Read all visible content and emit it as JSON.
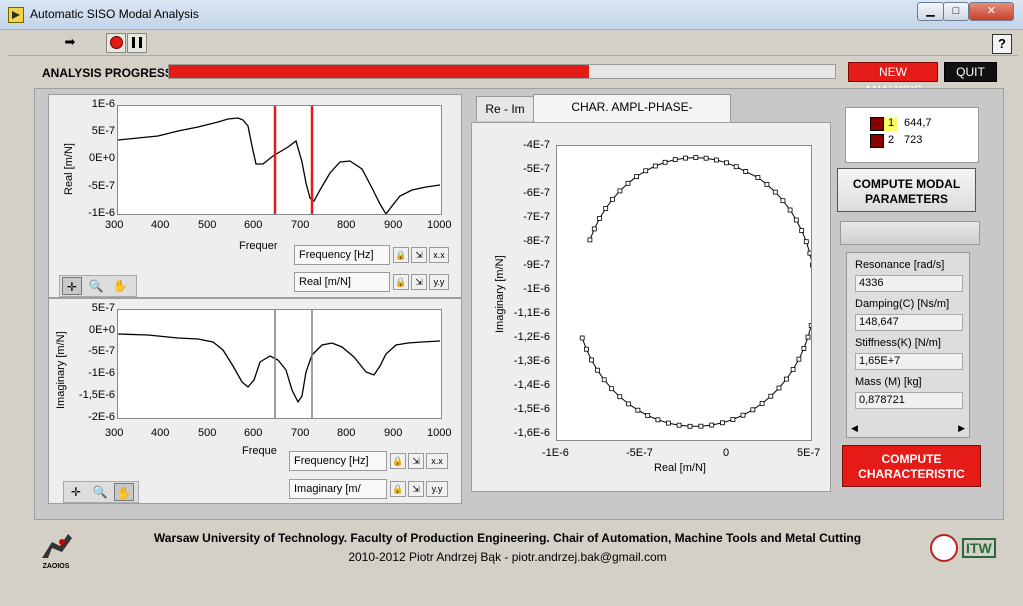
{
  "window": {
    "title": "Automatic SISO Modal Analysis",
    "minimize_glyph": "▁",
    "maximize_glyph": "□",
    "close_glyph": "✕"
  },
  "toolbar": {
    "run_icon": "➡",
    "help_label": "?"
  },
  "progress": {
    "label": "ANALYSIS PROGRESS",
    "fraction": 0.63
  },
  "buttons": {
    "new_analysis": "NEW ANALYSIS",
    "quit": "QUIT",
    "compute_modal_line1": "COMPUTE MODAL",
    "compute_modal_line2": "PARAMETERS",
    "compute_char_line1": "COMPUTE",
    "compute_char_line2": "CHARACTERISTIC"
  },
  "plot_real": {
    "ylabel": "Real [m/N]",
    "xlabel": "Frequer",
    "yticks": [
      "1E-6",
      "5E-7",
      "0E+0",
      "-5E-7",
      "-1E-6"
    ],
    "xticks": [
      "300",
      "400",
      "500",
      "600",
      "700",
      "800",
      "900",
      "1000"
    ],
    "legend_x": "Frequency [Hz]",
    "legend_y": "Real [m/N]",
    "cursor_color": "#e41b17"
  },
  "plot_imag": {
    "ylabel": "Imaginary [m/N]",
    "xlabel": "Freque",
    "yticks": [
      "5E-7",
      "0E+0",
      "-5E-7",
      "-1E-6",
      "-1,5E-6",
      "-2E-6"
    ],
    "xticks": [
      "300",
      "400",
      "500",
      "600",
      "700",
      "800",
      "900",
      "1000"
    ],
    "legend_x": "Frequency [Hz]",
    "legend_y": "Imaginary [m/",
    "cursor_color": "#808080"
  },
  "tabs": [
    "Re - Im",
    "CHAR. AMPL-PHASE-FREQUENCY"
  ],
  "plot_nyquist": {
    "ylabel": "Imaginary [m/N]",
    "xlabel": "Real [m/N]",
    "yticks": [
      "-4E-7",
      "-5E-7",
      "-6E-7",
      "-7E-7",
      "-8E-7",
      "-9E-7",
      "-1E-6",
      "-1,1E-6",
      "-1,2E-6",
      "-1,3E-6",
      "-1,4E-6",
      "-1,5E-6",
      "-1,6E-6"
    ],
    "xticks": [
      "-1E-6",
      "-5E-7",
      "0",
      "5E-7"
    ]
  },
  "cursor_list": [
    {
      "index": "1",
      "value": "644,7",
      "selected": true
    },
    {
      "index": "2",
      "value": "723",
      "selected": false
    }
  ],
  "results": [
    {
      "label": "Resonance [rad/s]",
      "value": "4336"
    },
    {
      "label": "Damping(C) [Ns/m]",
      "value": "148,647"
    },
    {
      "label": "Stiffness(K) [N/m]",
      "value": "1,65E+7"
    },
    {
      "label": "Mass (M) [kg]",
      "value": "0,878721"
    }
  ],
  "footer": {
    "line1": "Warsaw University of Technology. Faculty of Production Engineering. Chair of Automation, Machine Tools and Metal Cutting",
    "line2": "2010-2012 Piotr Andrzej Bąk - piotr.andrzej.bak@gmail.com",
    "logo_left_text": "ZAOIOS",
    "logo_right_text": "ITW"
  }
}
